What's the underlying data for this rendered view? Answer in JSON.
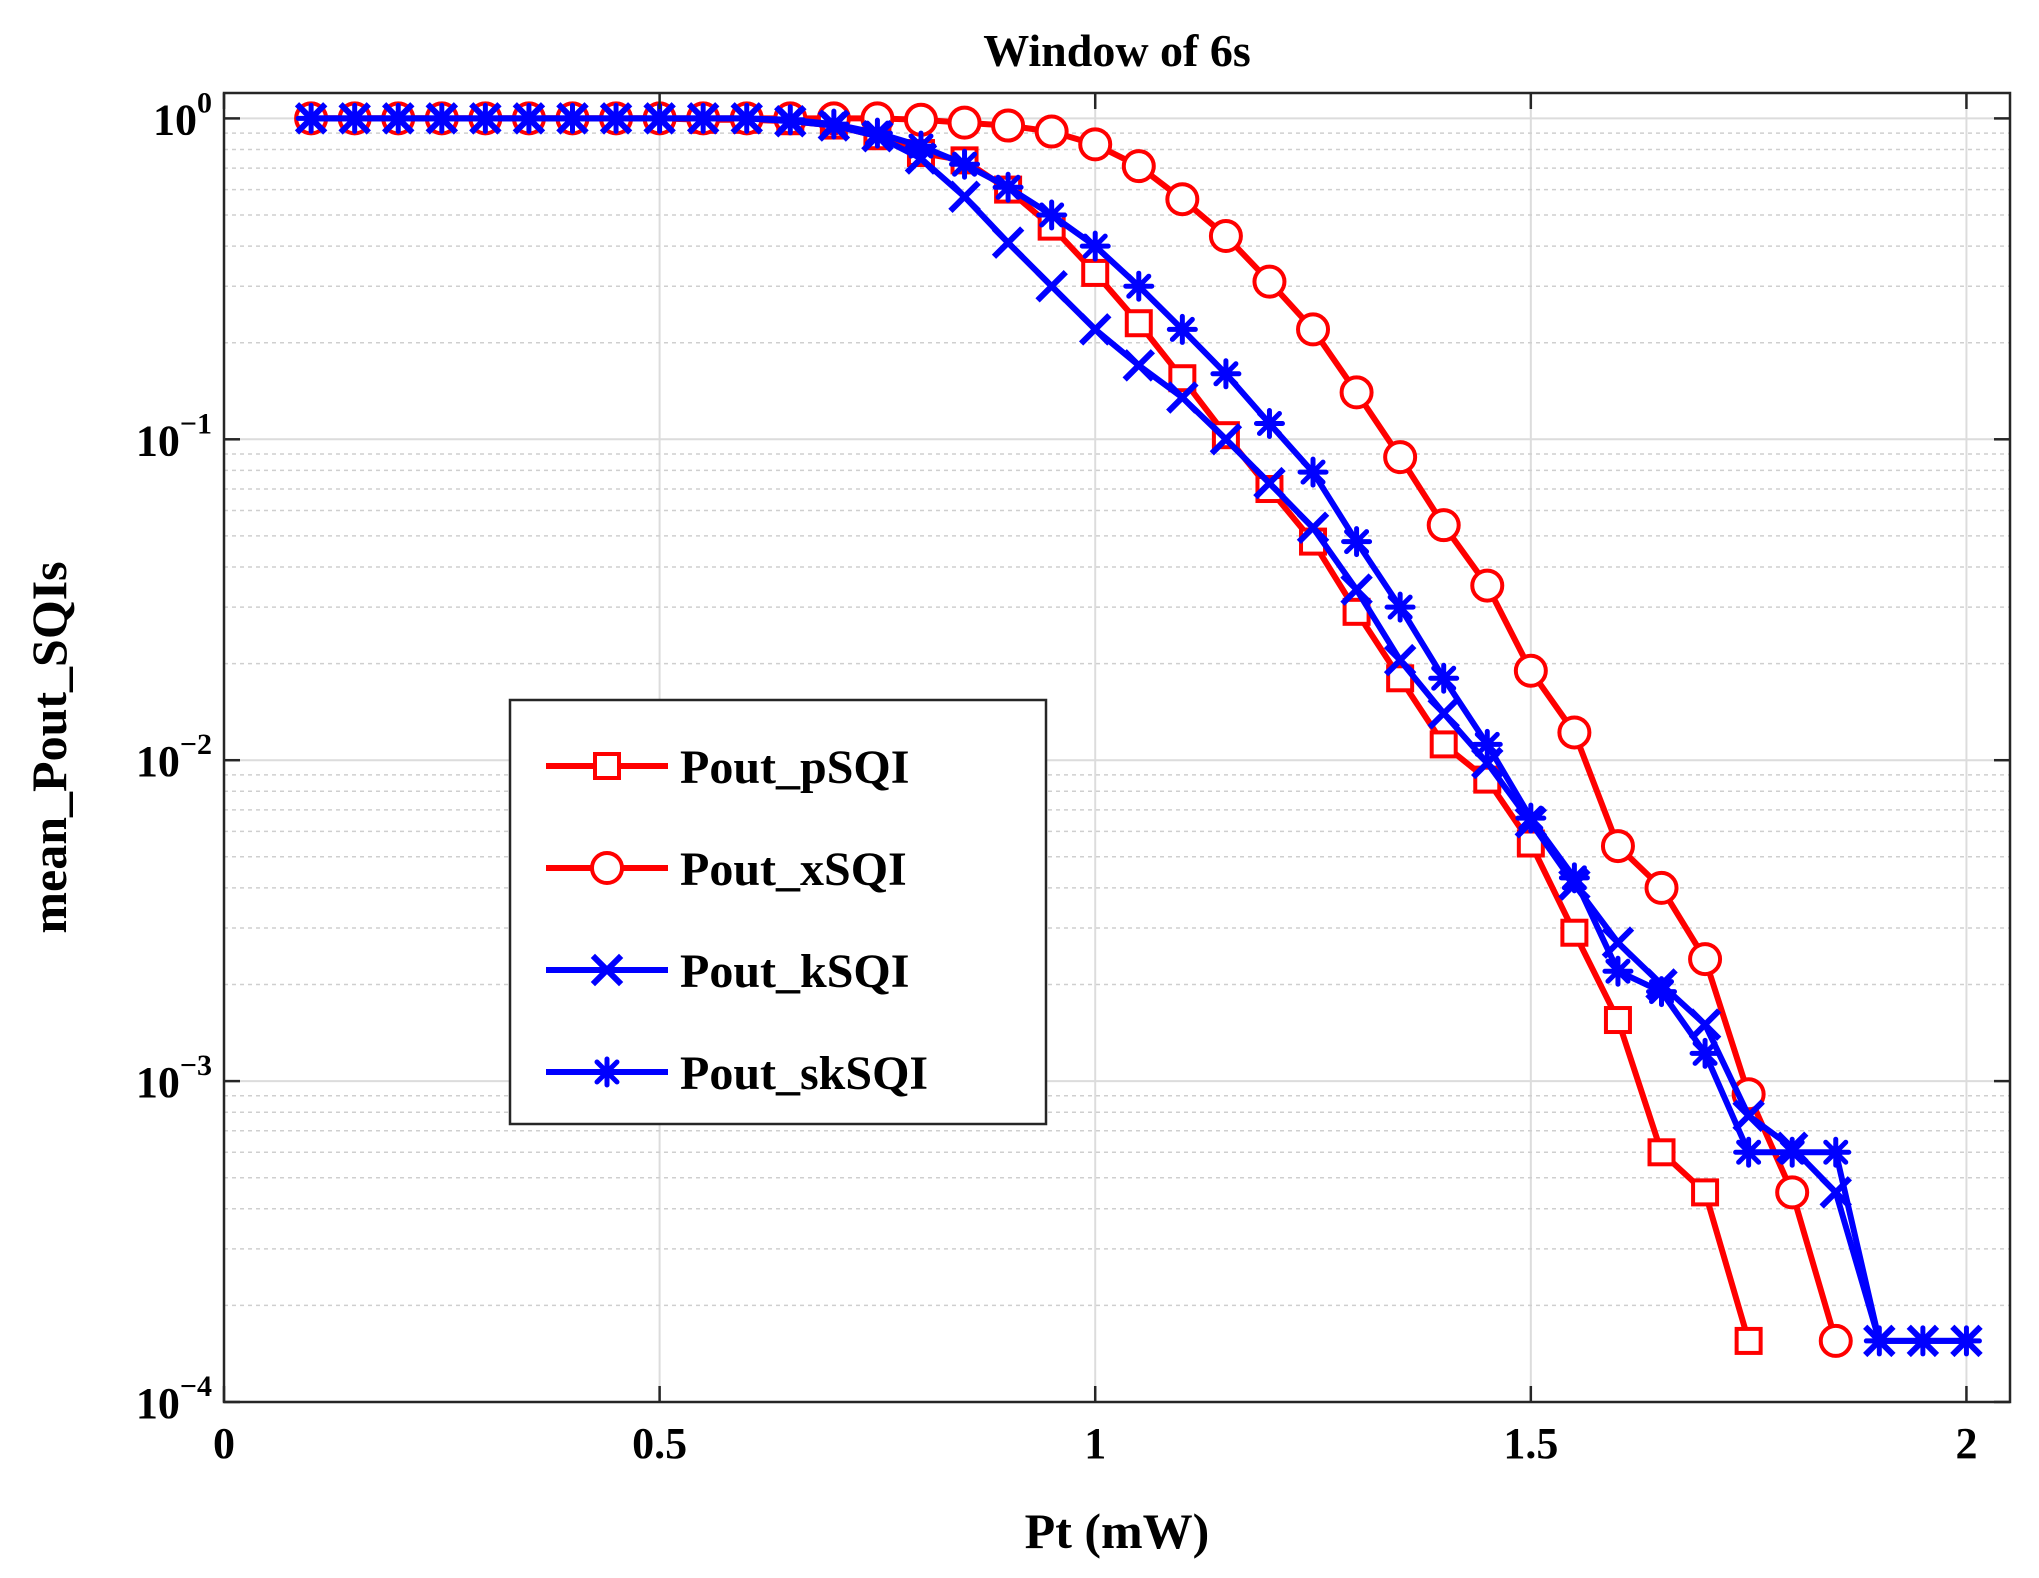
{
  "chart_data": {
    "type": "line",
    "title": "Window of 6s",
    "xlabel": "Pt (mW)",
    "ylabel": "mean_Pout_SQIs",
    "yscale": "log",
    "xlim": [
      0,
      2.05
    ],
    "ylim": [
      0.0001,
      1.2
    ],
    "grid": true,
    "legend_position": "center-left",
    "x_ticks": [
      {
        "value": 0,
        "label": "0"
      },
      {
        "value": 0.5,
        "label": "0.5"
      },
      {
        "value": 1,
        "label": "1"
      },
      {
        "value": 1.5,
        "label": "1.5"
      },
      {
        "value": 2,
        "label": "2"
      }
    ],
    "y_ticks": [
      {
        "value": 1,
        "base": "10",
        "exp": "0"
      },
      {
        "value": 0.1,
        "base": "10",
        "exp": "−1"
      },
      {
        "value": 0.01,
        "base": "10",
        "exp": "−2"
      },
      {
        "value": 0.001,
        "base": "10",
        "exp": "−3"
      },
      {
        "value": 0.0001,
        "base": "10",
        "exp": "−4"
      }
    ],
    "x": [
      0.1,
      0.15,
      0.2,
      0.25,
      0.3,
      0.35,
      0.4,
      0.45,
      0.5,
      0.55,
      0.6,
      0.65,
      0.7,
      0.75,
      0.8,
      0.85,
      0.9,
      0.95,
      1.0,
      1.05,
      1.1,
      1.15,
      1.2,
      1.25,
      1.3,
      1.35,
      1.4,
      1.45,
      1.5,
      1.55,
      1.6,
      1.65,
      1.7,
      1.75,
      1.8,
      1.85,
      1.9,
      1.95,
      2.0
    ],
    "series": [
      {
        "name": "Pout_pSQI",
        "color": "#ff0000",
        "marker": "square",
        "values": [
          1,
          1,
          1,
          1,
          1,
          1,
          1,
          1,
          1,
          0.99,
          0.99,
          0.98,
          0.95,
          0.88,
          0.78,
          0.74,
          0.6,
          0.46,
          0.33,
          0.23,
          0.155,
          0.103,
          0.07,
          0.048,
          0.029,
          0.018,
          0.0112,
          0.0087,
          0.0055,
          0.0029,
          0.00155,
          0.0006,
          0.00045,
          0.000155,
          null,
          null,
          null,
          null,
          null
        ]
      },
      {
        "name": "Pout_xSQI",
        "color": "#ff0000",
        "marker": "circle",
        "values": [
          1,
          1,
          1,
          1,
          1,
          1,
          1,
          1,
          1,
          1,
          1,
          1,
          1,
          1,
          0.99,
          0.97,
          0.95,
          0.91,
          0.83,
          0.71,
          0.56,
          0.43,
          0.31,
          0.22,
          0.14,
          0.088,
          0.054,
          0.035,
          0.019,
          0.0122,
          0.0054,
          0.004,
          0.0024,
          0.00091,
          0.00045,
          0.000155,
          null,
          null,
          null
        ]
      },
      {
        "name": "Pout_kSQI",
        "color": "#0000ff",
        "marker": "x",
        "values": [
          1,
          1,
          1,
          1,
          1,
          1,
          1,
          1,
          1,
          1,
          1,
          0.98,
          0.95,
          0.88,
          0.75,
          0.57,
          0.41,
          0.3,
          0.22,
          0.17,
          0.135,
          0.1,
          0.073,
          0.053,
          0.034,
          0.0205,
          0.014,
          0.0098,
          0.0064,
          0.0041,
          0.0027,
          0.002,
          0.0015,
          0.00078,
          0.00062,
          0.00045,
          0.000155,
          0.000155,
          0.000155
        ]
      },
      {
        "name": "Pout_skSQI",
        "color": "#0000ff",
        "marker": "asterisk",
        "values": [
          1,
          1,
          1,
          1,
          1,
          1,
          1,
          1,
          1,
          1,
          1,
          0.99,
          0.96,
          0.9,
          0.82,
          0.72,
          0.61,
          0.5,
          0.4,
          0.3,
          0.22,
          0.16,
          0.112,
          0.079,
          0.048,
          0.03,
          0.018,
          0.0112,
          0.0066,
          0.0043,
          0.0022,
          0.0019,
          0.00122,
          0.0006,
          0.0006,
          0.0006,
          0.000155,
          0.000155,
          0.000155
        ]
      }
    ]
  }
}
